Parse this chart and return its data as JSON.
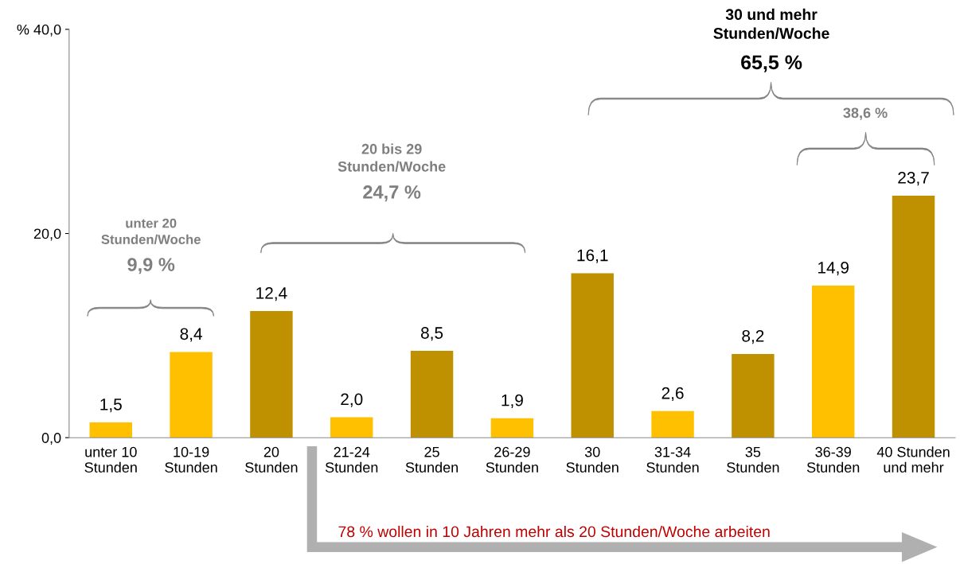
{
  "chart_data": {
    "type": "bar",
    "categories": [
      "unter 10\nStunden",
      "10-19\nStunden",
      "20\nStunden",
      "21-24\nStunden",
      "25\nStunden",
      "26-29\nStunden",
      "30\nStunden",
      "31-34\nStunden",
      "35\nStunden",
      "36-39\nStunden",
      "40 Stunden\nund mehr"
    ],
    "values": [
      1.5,
      8.4,
      12.4,
      2.0,
      8.5,
      1.9,
      16.1,
      2.6,
      8.2,
      14.9,
      23.7
    ],
    "value_labels": [
      "1,5",
      "8,4",
      "12,4",
      "2,0",
      "8,5",
      "1,9",
      "16,1",
      "2,6",
      "8,2",
      "14,9",
      "23,7"
    ],
    "colors": [
      "#ffc000",
      "#ffc000",
      "#bf9000",
      "#ffc000",
      "#bf9000",
      "#ffc000",
      "#bf9000",
      "#ffc000",
      "#bf9000",
      "#ffc000",
      "#bf9000"
    ],
    "ylim": [
      0,
      40
    ],
    "yticks": [
      {
        "value": 0,
        "label": "0,0"
      },
      {
        "value": 20,
        "label": "20,0"
      },
      {
        "value": 40,
        "label": "% 40,0"
      }
    ],
    "grid": false,
    "legend": false,
    "annotations": [
      "unter 20\nStunden/Woche",
      "9,9 %",
      "20 bis 29\nStunden/Woche",
      "24,7 %",
      "30 und mehr\nStunden/Woche",
      "65,5 %",
      "38,6 %",
      "78 % wollen in 10 Jahren mehr als 20 Stunden/Woche arbeiten"
    ]
  }
}
